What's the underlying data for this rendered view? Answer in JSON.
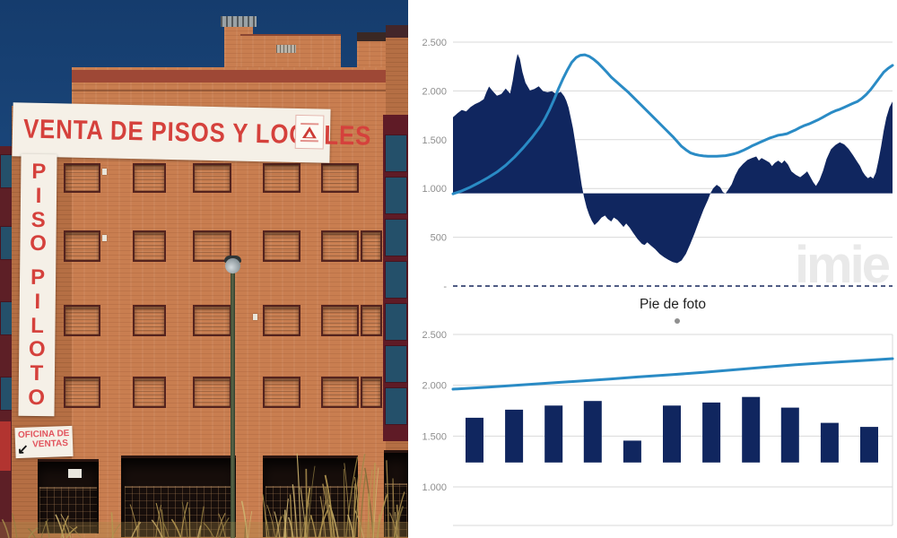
{
  "photo": {
    "banner_main_text": "VENTA DE PISOS Y LOCALES",
    "vertical_banner_text": "PISO PILOTO",
    "sales_office_sign": {
      "line1": "OFICINA DE",
      "line2": "VENTAS",
      "arrow": "↙"
    },
    "colors": {
      "sky": "#1c4a80",
      "brick": "#c97e50",
      "stripe": "#9e4836",
      "shutter": "#7c3a30",
      "banner_bg": "#f5f0e7",
      "banner_text": "#d5413c"
    }
  },
  "caption": {
    "text": "Pie de foto"
  },
  "chart_data": [
    {
      "type": "area",
      "title": "",
      "watermark": "imie",
      "x_axis_unlabeled": true,
      "y_ticks": [
        {
          "label": "2.500",
          "value": 2500
        },
        {
          "label": "2.000",
          "value": 2000
        },
        {
          "label": "1.500",
          "value": 1500
        },
        {
          "label": "1.000",
          "value": 1000
        },
        {
          "label": "500",
          "value": 500
        },
        {
          "label": "-",
          "value": 0
        }
      ],
      "ylim": [
        0,
        2700
      ],
      "area_baseline": 950,
      "colors": {
        "area": "#10265f",
        "line": "#2a8bc5",
        "grid": "#d9d9d9",
        "tick_text": "#8e8e8e",
        "axis_dash": "#16275c",
        "watermark": "#e9e9e9"
      },
      "series": [
        {
          "name": "index-area",
          "type": "area",
          "points": [
            [
              0,
              1730
            ],
            [
              1,
              1770
            ],
            [
              2,
              1805
            ],
            [
              3,
              1790
            ],
            [
              4,
              1835
            ],
            [
              5,
              1865
            ],
            [
              6,
              1885
            ],
            [
              7,
              1915
            ],
            [
              7.6,
              1985
            ],
            [
              8.2,
              2045
            ],
            [
              9,
              2000
            ],
            [
              10,
              1950
            ],
            [
              11,
              1968
            ],
            [
              12,
              2025
            ],
            [
              13,
              1972
            ],
            [
              13.6,
              2105
            ],
            [
              14.2,
              2280
            ],
            [
              14.7,
              2380
            ],
            [
              15.2,
              2330
            ],
            [
              15.8,
              2195
            ],
            [
              16.5,
              2085
            ],
            [
              17.5,
              2005
            ],
            [
              18.5,
              2020
            ],
            [
              19.5,
              2048
            ],
            [
              20.5,
              1998
            ],
            [
              21.5,
              1988
            ],
            [
              22.5,
              1996
            ],
            [
              23.5,
              1968
            ],
            [
              24.5,
              1992
            ],
            [
              25.3,
              1945
            ],
            [
              25.8,
              1898
            ],
            [
              26.3,
              1828
            ],
            [
              26.8,
              1725
            ],
            [
              27.3,
              1615
            ],
            [
              27.8,
              1478
            ],
            [
              28.3,
              1330
            ],
            [
              28.8,
              1178
            ],
            [
              29.3,
              1028
            ],
            [
              29.8,
              915
            ],
            [
              30.4,
              805
            ],
            [
              31,
              728
            ],
            [
              31.6,
              668
            ],
            [
              32.2,
              625
            ],
            [
              33,
              658
            ],
            [
              33.8,
              702
            ],
            [
              34.6,
              722
            ],
            [
              35.2,
              688
            ],
            [
              36,
              662
            ],
            [
              36.6,
              702
            ],
            [
              37.4,
              678
            ],
            [
              38.2,
              638
            ],
            [
              38.8,
              606
            ],
            [
              39.4,
              642
            ],
            [
              40.2,
              598
            ],
            [
              41,
              545
            ],
            [
              42,
              482
            ],
            [
              43,
              432
            ],
            [
              43.6,
              420
            ],
            [
              44.2,
              448
            ],
            [
              45,
              415
            ],
            [
              46,
              378
            ],
            [
              47,
              330
            ],
            [
              48,
              296
            ],
            [
              49,
              268
            ],
            [
              50,
              246
            ],
            [
              51,
              234
            ],
            [
              52,
              262
            ],
            [
              53,
              330
            ],
            [
              54,
              432
            ],
            [
              55,
              545
            ],
            [
              56,
              665
            ],
            [
              57,
              782
            ],
            [
              58,
              882
            ],
            [
              58.6,
              952
            ],
            [
              59.2,
              1002
            ],
            [
              60,
              1038
            ],
            [
              60.8,
              1012
            ],
            [
              61.4,
              962
            ],
            [
              62,
              948
            ],
            [
              62.6,
              986
            ],
            [
              63.4,
              1042
            ],
            [
              64.2,
              1132
            ],
            [
              65,
              1202
            ],
            [
              66,
              1252
            ],
            [
              67,
              1292
            ],
            [
              68,
              1312
            ],
            [
              69,
              1328
            ],
            [
              69.6,
              1286
            ],
            [
              70.2,
              1312
            ],
            [
              71,
              1292
            ],
            [
              72,
              1266
            ],
            [
              72.6,
              1230
            ],
            [
              73.2,
              1262
            ],
            [
              74,
              1286
            ],
            [
              74.8,
              1258
            ],
            [
              75.4,
              1288
            ],
            [
              76.2,
              1246
            ],
            [
              77,
              1176
            ],
            [
              78,
              1140
            ],
            [
              79,
              1116
            ],
            [
              80,
              1152
            ],
            [
              80.6,
              1176
            ],
            [
              81.2,
              1126
            ],
            [
              82,
              1062
            ],
            [
              82.6,
              1026
            ],
            [
              83.4,
              1088
            ],
            [
              84.2,
              1182
            ],
            [
              85,
              1302
            ],
            [
              86,
              1402
            ],
            [
              87,
              1446
            ],
            [
              88,
              1472
            ],
            [
              89,
              1452
            ],
            [
              90,
              1406
            ],
            [
              91,
              1342
            ],
            [
              92,
              1272
            ],
            [
              92.6,
              1232
            ],
            [
              93.2,
              1172
            ],
            [
              93.8,
              1132
            ],
            [
              94.4,
              1106
            ],
            [
              95,
              1122
            ],
            [
              95.6,
              1102
            ],
            [
              96.2,
              1162
            ],
            [
              96.8,
              1285
            ],
            [
              97.4,
              1432
            ],
            [
              98,
              1592
            ],
            [
              98.6,
              1725
            ],
            [
              99.3,
              1832
            ],
            [
              100,
              1892
            ]
          ]
        },
        {
          "name": "index-line",
          "type": "line",
          "points": [
            [
              0,
              945
            ],
            [
              2,
              975
            ],
            [
              4,
              1015
            ],
            [
              6,
              1062
            ],
            [
              8,
              1112
            ],
            [
              10,
              1168
            ],
            [
              12,
              1238
            ],
            [
              14,
              1322
            ],
            [
              16,
              1418
            ],
            [
              18,
              1525
            ],
            [
              20,
              1645
            ],
            [
              21,
              1722
            ],
            [
              22,
              1812
            ],
            [
              23,
              1912
            ],
            [
              24,
              2022
            ],
            [
              25,
              2122
            ],
            [
              26,
              2212
            ],
            [
              27,
              2292
            ],
            [
              28,
              2342
            ],
            [
              29,
              2366
            ],
            [
              30,
              2370
            ],
            [
              31,
              2354
            ],
            [
              32,
              2324
            ],
            [
              33,
              2286
            ],
            [
              34,
              2240
            ],
            [
              35,
              2192
            ],
            [
              36,
              2142
            ],
            [
              38,
              2062
            ],
            [
              40,
              1982
            ],
            [
              42,
              1892
            ],
            [
              44,
              1802
            ],
            [
              46,
              1712
            ],
            [
              48,
              1622
            ],
            [
              50,
              1532
            ],
            [
              51,
              1482
            ],
            [
              52,
              1432
            ],
            [
              53,
              1396
            ],
            [
              54,
              1366
            ],
            [
              55,
              1350
            ],
            [
              56,
              1340
            ],
            [
              57,
              1334
            ],
            [
              58,
              1330
            ],
            [
              60,
              1330
            ],
            [
              62,
              1336
            ],
            [
              63,
              1346
            ],
            [
              64,
              1356
            ],
            [
              65,
              1370
            ],
            [
              66,
              1390
            ],
            [
              67,
              1412
            ],
            [
              68,
              1436
            ],
            [
              69,
              1456
            ],
            [
              70,
              1476
            ],
            [
              71,
              1496
            ],
            [
              72,
              1516
            ],
            [
              73,
              1530
            ],
            [
              74,
              1546
            ],
            [
              75,
              1552
            ],
            [
              76,
              1562
            ],
            [
              77,
              1582
            ],
            [
              78,
              1602
            ],
            [
              79,
              1626
            ],
            [
              80,
              1646
            ],
            [
              81,
              1662
            ],
            [
              82,
              1682
            ],
            [
              83,
              1702
            ],
            [
              84,
              1726
            ],
            [
              85,
              1752
            ],
            [
              86,
              1776
            ],
            [
              87,
              1796
            ],
            [
              88,
              1812
            ],
            [
              89,
              1832
            ],
            [
              90,
              1852
            ],
            [
              91,
              1872
            ],
            [
              92,
              1892
            ],
            [
              93,
              1922
            ],
            [
              94,
              1962
            ],
            [
              95,
              2012
            ],
            [
              96,
              2072
            ],
            [
              97,
              2132
            ],
            [
              98,
              2192
            ],
            [
              99,
              2232
            ],
            [
              100,
              2262
            ]
          ]
        }
      ]
    },
    {
      "type": "bar",
      "title": "",
      "x_axis_unlabeled": true,
      "y_ticks": [
        {
          "label": "2.500",
          "value": 2500
        },
        {
          "label": "2.000",
          "value": 2000
        },
        {
          "label": "1.500",
          "value": 1500
        },
        {
          "label": "1.000",
          "value": 1000
        }
      ],
      "ylim": [
        600,
        2500
      ],
      "bar_baseline": 1240,
      "colors": {
        "bar": "#10265f",
        "line": "#2a8bc5",
        "grid": "#d9d9d9",
        "tick_text": "#8e8e8e"
      },
      "bars": {
        "x_pct": [
          4.9,
          13.9,
          22.9,
          31.8,
          40.8,
          49.8,
          58.8,
          67.8,
          76.7,
          85.7,
          94.7
        ],
        "values": [
          1680,
          1760,
          1800,
          1845,
          1455,
          1800,
          1830,
          1885,
          1780,
          1630,
          1590
        ]
      },
      "line": {
        "points": [
          [
            0,
            1962
          ],
          [
            8,
            1982
          ],
          [
            16,
            2005
          ],
          [
            24,
            2028
          ],
          [
            30,
            2045
          ],
          [
            36,
            2062
          ],
          [
            42,
            2082
          ],
          [
            50,
            2105
          ],
          [
            57,
            2128
          ],
          [
            64,
            2152
          ],
          [
            71,
            2178
          ],
          [
            78,
            2202
          ],
          [
            85,
            2222
          ],
          [
            91,
            2238
          ],
          [
            96,
            2250
          ],
          [
            100,
            2262
          ]
        ]
      }
    }
  ]
}
